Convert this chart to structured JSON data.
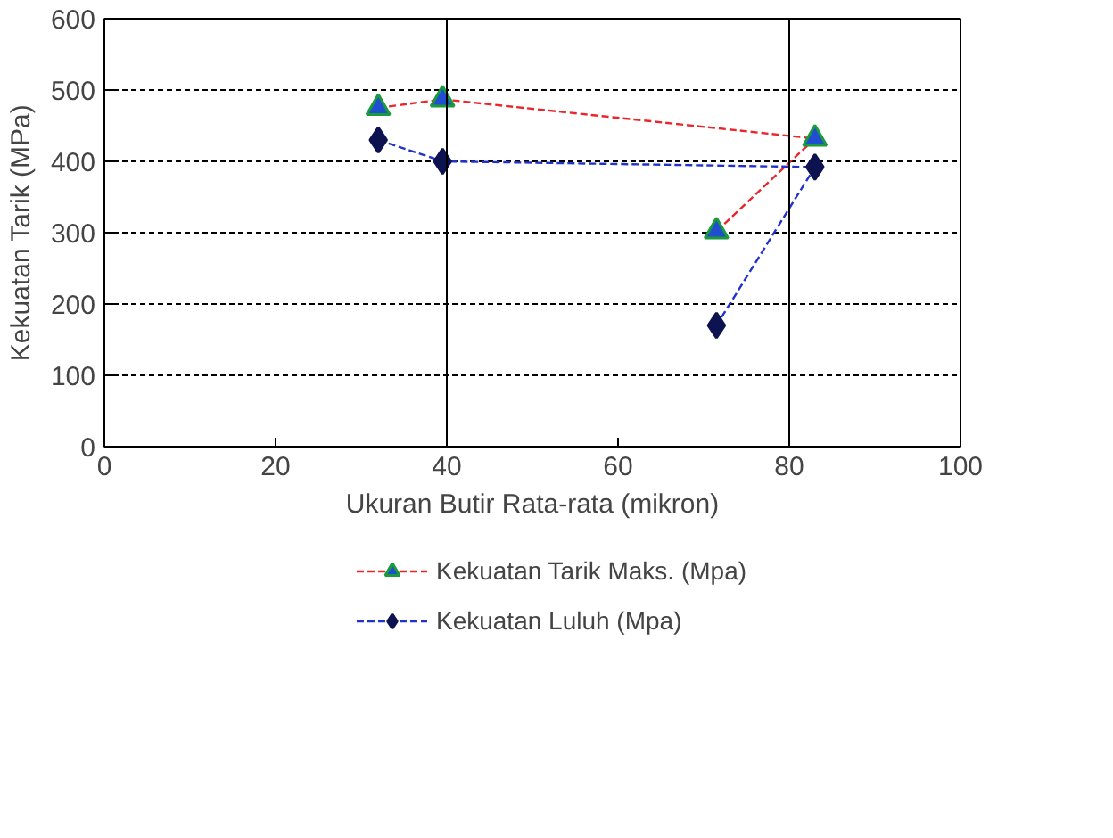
{
  "chart_data": {
    "type": "line",
    "xlabel": "Ukuran Butir Rata-rata (mikron)",
    "ylabel": "Kekuatan Tarik (MPa)",
    "xlim": [
      0,
      100
    ],
    "xticks": [
      0,
      20,
      40,
      60,
      80,
      100
    ],
    "ylim": [
      0,
      600
    ],
    "yticks": [
      0,
      100,
      200,
      300,
      400,
      500,
      600
    ],
    "x": [
      32,
      39.5,
      83,
      71.5
    ],
    "series": [
      {
        "name": "Kekuatan Tarik Maks. (Mpa)",
        "color": "#e8262b",
        "marker": "triangle",
        "values": [
          475,
          487,
          432,
          302
        ]
      },
      {
        "name": "Kekuatan Luluh (Mpa)",
        "color": "#2233cc",
        "marker": "diamond",
        "values": [
          430,
          400,
          392,
          170
        ]
      }
    ],
    "ref_lines": [
      {
        "axis": "x",
        "value": 40,
        "label": null,
        "color": "#000000",
        "line_style": "solid"
      },
      {
        "axis": "x",
        "value": 80,
        "label": null,
        "color": "#000000",
        "line_style": "solid"
      }
    ],
    "grid": "y",
    "legend": "bottom",
    "line_style": "dashed"
  }
}
